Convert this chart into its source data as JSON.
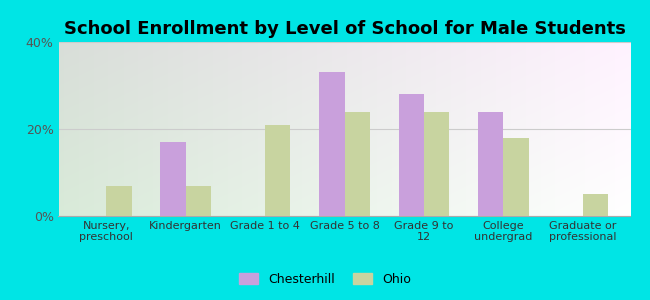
{
  "title": "School Enrollment by Level of School for Male Students",
  "categories": [
    "Nursery,\npreschool",
    "Kindergarten",
    "Grade 1 to 4",
    "Grade 5 to 8",
    "Grade 9 to\n12",
    "College\nundergrad",
    "Graduate or\nprofessional"
  ],
  "chesterhill": [
    0,
    17,
    0,
    33,
    28,
    24,
    0
  ],
  "ohio": [
    7,
    7,
    21,
    24,
    24,
    18,
    5
  ],
  "chesterhill_color": "#c9a0dc",
  "ohio_color": "#c8d4a0",
  "background_color": "#00e5e5",
  "ylim": [
    0,
    40
  ],
  "yticks": [
    0,
    20,
    40
  ],
  "ytick_labels": [
    "0%",
    "20%",
    "40%"
  ],
  "title_fontsize": 13,
  "legend_labels": [
    "Chesterhill",
    "Ohio"
  ],
  "bar_width": 0.32,
  "grid_color": "#cccccc",
  "plot_bg_left": "#c8e6c0",
  "plot_bg_right": "#f5fff5"
}
